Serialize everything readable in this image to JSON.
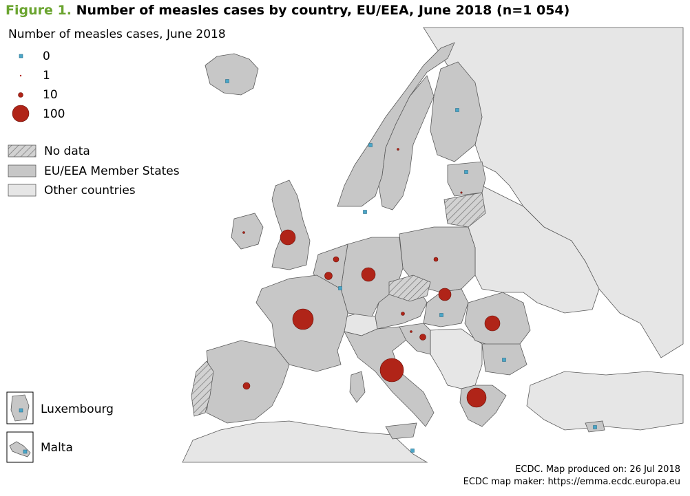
{
  "figure": {
    "number": "Figure 1.",
    "title": "Number of measles cases by country, EU/EEA, June 2018 (n=1 054)"
  },
  "legend": {
    "title": "Number of measles cases, June 2018",
    "size_items": [
      {
        "label": "0",
        "symbol": "teal-square"
      },
      {
        "label": "1",
        "symbol": "red-dot"
      },
      {
        "label": "10",
        "symbol": "red-circle"
      },
      {
        "label": "100",
        "symbol": "red-circle"
      }
    ],
    "fill_items": [
      {
        "label": "No data",
        "pattern": "hatched"
      },
      {
        "label": "EU/EEA Member States",
        "color": "#c7c7c7"
      },
      {
        "label": "Other countries",
        "color": "#e6e6e6"
      }
    ]
  },
  "insets": [
    {
      "label": "Luxembourg"
    },
    {
      "label": "Malta"
    }
  ],
  "credits": {
    "line1": "ECDC. Map produced on: 26 Jul 2018",
    "line2": "ECDC map maker: https://emma.ecdc.europa.eu"
  },
  "colors": {
    "title_accent": "#6aa42f",
    "sea": "#ffffff",
    "eu_fill": "#c7c7c7",
    "other_fill": "#e6e6e6",
    "border": "#5a5a5a",
    "case_circle": "#b02418",
    "zero_marker": "#4aa6c8"
  }
}
